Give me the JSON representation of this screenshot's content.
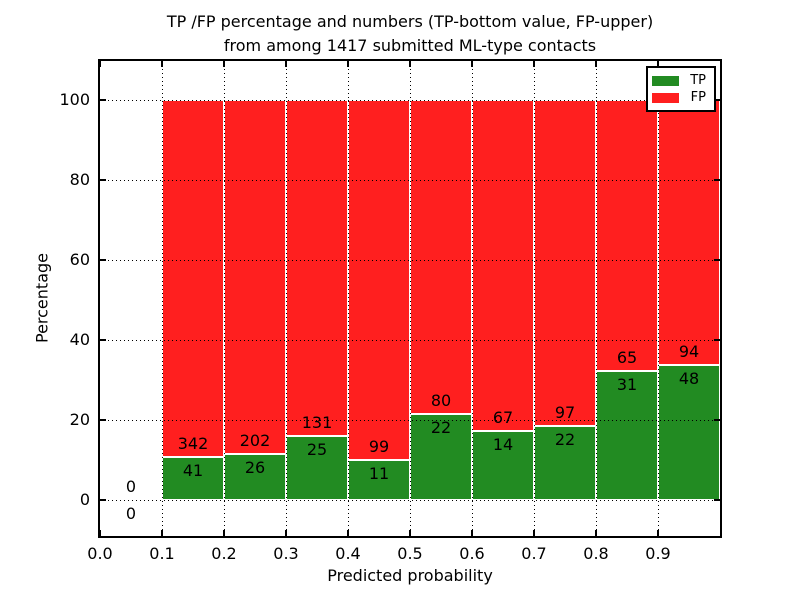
{
  "chart_data": {
    "type": "bar",
    "stacked": true,
    "units": "percent",
    "title_lines": [
      "TP /FP percentage and numbers (TP-bottom value, FP-upper)",
      "from among 1417 submitted ML-type contacts"
    ],
    "xlabel": "Predicted probability",
    "ylabel": "Percentage",
    "xlim": [
      0.0,
      1.0
    ],
    "ylim": [
      -10,
      110
    ],
    "xticks": [
      "0.0",
      "0.1",
      "0.2",
      "0.3",
      "0.4",
      "0.5",
      "0.6",
      "0.7",
      "0.8",
      "0.9"
    ],
    "yticks": [
      0,
      20,
      40,
      60,
      80,
      100
    ],
    "grid": "dotted-black-drawn-over-bars",
    "total_contacts": 1417,
    "series": [
      {
        "name": "TP",
        "color": "#228b22"
      },
      {
        "name": "FP",
        "color": "#ff1f1f"
      }
    ],
    "legend": {
      "position": "upper right",
      "entries": [
        {
          "label": "TP",
          "color": "#228b22"
        },
        {
          "label": "FP",
          "color": "#ff1f1f"
        }
      ]
    },
    "bins": [
      {
        "x_range": [
          0.0,
          0.1
        ],
        "tp_count": 0,
        "fp_count": 0,
        "tp_pct": 0,
        "fp_pct": 0
      },
      {
        "x_range": [
          0.1,
          0.2
        ],
        "tp_count": 41,
        "fp_count": 342,
        "tp_pct": 10.7,
        "fp_pct": 89.3
      },
      {
        "x_range": [
          0.2,
          0.3
        ],
        "tp_count": 26,
        "fp_count": 202,
        "tp_pct": 11.4,
        "fp_pct": 88.6
      },
      {
        "x_range": [
          0.3,
          0.4
        ],
        "tp_count": 25,
        "fp_count": 131,
        "tp_pct": 16.03,
        "fp_pct": 83.97
      },
      {
        "x_range": [
          0.4,
          0.5
        ],
        "tp_count": 11,
        "fp_count": 99,
        "tp_pct": 10.0,
        "fp_pct": 90.0
      },
      {
        "x_range": [
          0.5,
          0.6
        ],
        "tp_count": 22,
        "fp_count": 80,
        "tp_pct": 21.57,
        "fp_pct": 78.43
      },
      {
        "x_range": [
          0.6,
          0.7
        ],
        "tp_count": 14,
        "fp_count": 67,
        "tp_pct": 17.28,
        "fp_pct": 82.72
      },
      {
        "x_range": [
          0.7,
          0.8
        ],
        "tp_count": 22,
        "fp_count": 97,
        "tp_pct": 18.49,
        "fp_pct": 81.51
      },
      {
        "x_range": [
          0.8,
          0.9
        ],
        "tp_count": 31,
        "fp_count": 65,
        "tp_pct": 32.29,
        "fp_pct": 67.71
      },
      {
        "x_range": [
          0.9,
          1.0
        ],
        "tp_count": 48,
        "fp_count": 94,
        "tp_pct": 33.8,
        "fp_pct": 66.2
      }
    ]
  }
}
